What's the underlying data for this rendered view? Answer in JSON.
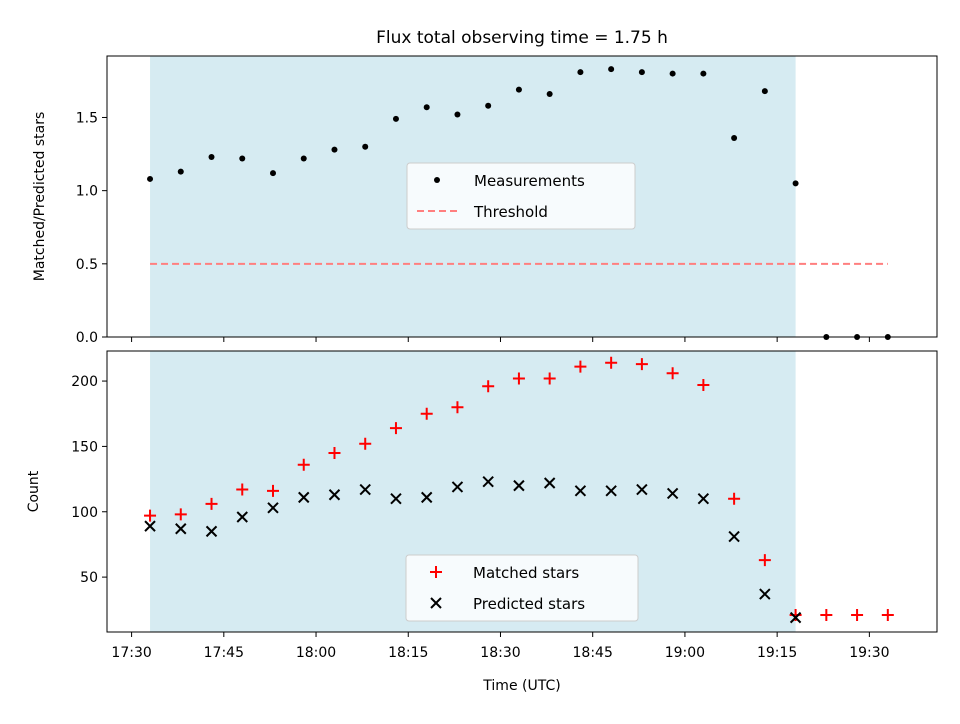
{
  "figure": {
    "title": "Flux total observing time = 1.75 h",
    "xlabel": "Time (UTC)"
  },
  "colors": {
    "shade": "#add8e6",
    "measurements": "#000000",
    "threshold": "#ff7f7f",
    "matched": "#ff0000",
    "predicted": "#000000"
  },
  "chart_data": [
    {
      "type": "scatter",
      "ylabel": "Matched/Predicted stars",
      "ylim": [
        0,
        1.92
      ],
      "yticks": [
        0.0,
        0.5,
        1.0,
        1.5
      ],
      "ytick_labels": [
        "0.0",
        "0.5",
        "1.0",
        "1.5"
      ],
      "xlim": [
        "17:26",
        "19:41"
      ],
      "shaded_interval": [
        "17:33",
        "19:18"
      ],
      "legend": "center",
      "threshold": {
        "name": "Threshold",
        "value": 0.5,
        "x": [
          "17:33",
          "19:33"
        ],
        "style": "dashed"
      },
      "series": [
        {
          "name": "Measurements",
          "marker": "dot",
          "x": [
            "17:33",
            "17:38",
            "17:43",
            "17:48",
            "17:53",
            "17:58",
            "18:03",
            "18:08",
            "18:13",
            "18:18",
            "18:23",
            "18:28",
            "18:33",
            "18:38",
            "18:43",
            "18:48",
            "18:53",
            "18:58",
            "19:03",
            "19:08",
            "19:13",
            "19:18",
            "19:23",
            "19:28",
            "19:33"
          ],
          "values": [
            1.08,
            1.13,
            1.23,
            1.22,
            1.12,
            1.22,
            1.28,
            1.3,
            1.49,
            1.57,
            1.52,
            1.58,
            1.69,
            1.66,
            1.81,
            1.83,
            1.81,
            1.8,
            1.8,
            1.36,
            1.68,
            1.05,
            0.0,
            0.0,
            0.0
          ]
        }
      ]
    },
    {
      "type": "scatter",
      "ylabel": "Count",
      "ylim": [
        8,
        223
      ],
      "yticks": [
        50,
        100,
        150,
        200
      ],
      "ytick_labels": [
        "50",
        "100",
        "150",
        "200"
      ],
      "xlim": [
        "17:26",
        "19:41"
      ],
      "xticks": [
        "17:30",
        "17:45",
        "18:00",
        "18:15",
        "18:30",
        "18:45",
        "19:00",
        "19:15",
        "19:30"
      ],
      "shaded_interval": [
        "17:33",
        "19:18"
      ],
      "legend": "lower center",
      "series": [
        {
          "name": "Matched stars",
          "marker": "plus",
          "x": [
            "17:33",
            "17:38",
            "17:43",
            "17:48",
            "17:53",
            "17:58",
            "18:03",
            "18:08",
            "18:13",
            "18:18",
            "18:23",
            "18:28",
            "18:33",
            "18:38",
            "18:43",
            "18:48",
            "18:53",
            "18:58",
            "19:03",
            "19:08",
            "19:13",
            "19:18",
            "19:23",
            "19:28",
            "19:33"
          ],
          "values": [
            97,
            98,
            106,
            117,
            116,
            136,
            145,
            152,
            164,
            175,
            180,
            196,
            202,
            202,
            211,
            214,
            213,
            206,
            197,
            110,
            63,
            21,
            21,
            21,
            21
          ]
        },
        {
          "name": "Predicted stars",
          "marker": "x",
          "x": [
            "17:33",
            "17:38",
            "17:43",
            "17:48",
            "17:53",
            "17:58",
            "18:03",
            "18:08",
            "18:13",
            "18:18",
            "18:23",
            "18:28",
            "18:33",
            "18:38",
            "18:43",
            "18:48",
            "18:53",
            "18:58",
            "19:03",
            "19:08",
            "19:13",
            "19:18"
          ],
          "values": [
            89,
            87,
            85,
            96,
            103,
            111,
            113,
            117,
            110,
            111,
            119,
            123,
            120,
            122,
            116,
            116,
            117,
            114,
            110,
            81,
            37,
            19
          ]
        }
      ]
    }
  ]
}
